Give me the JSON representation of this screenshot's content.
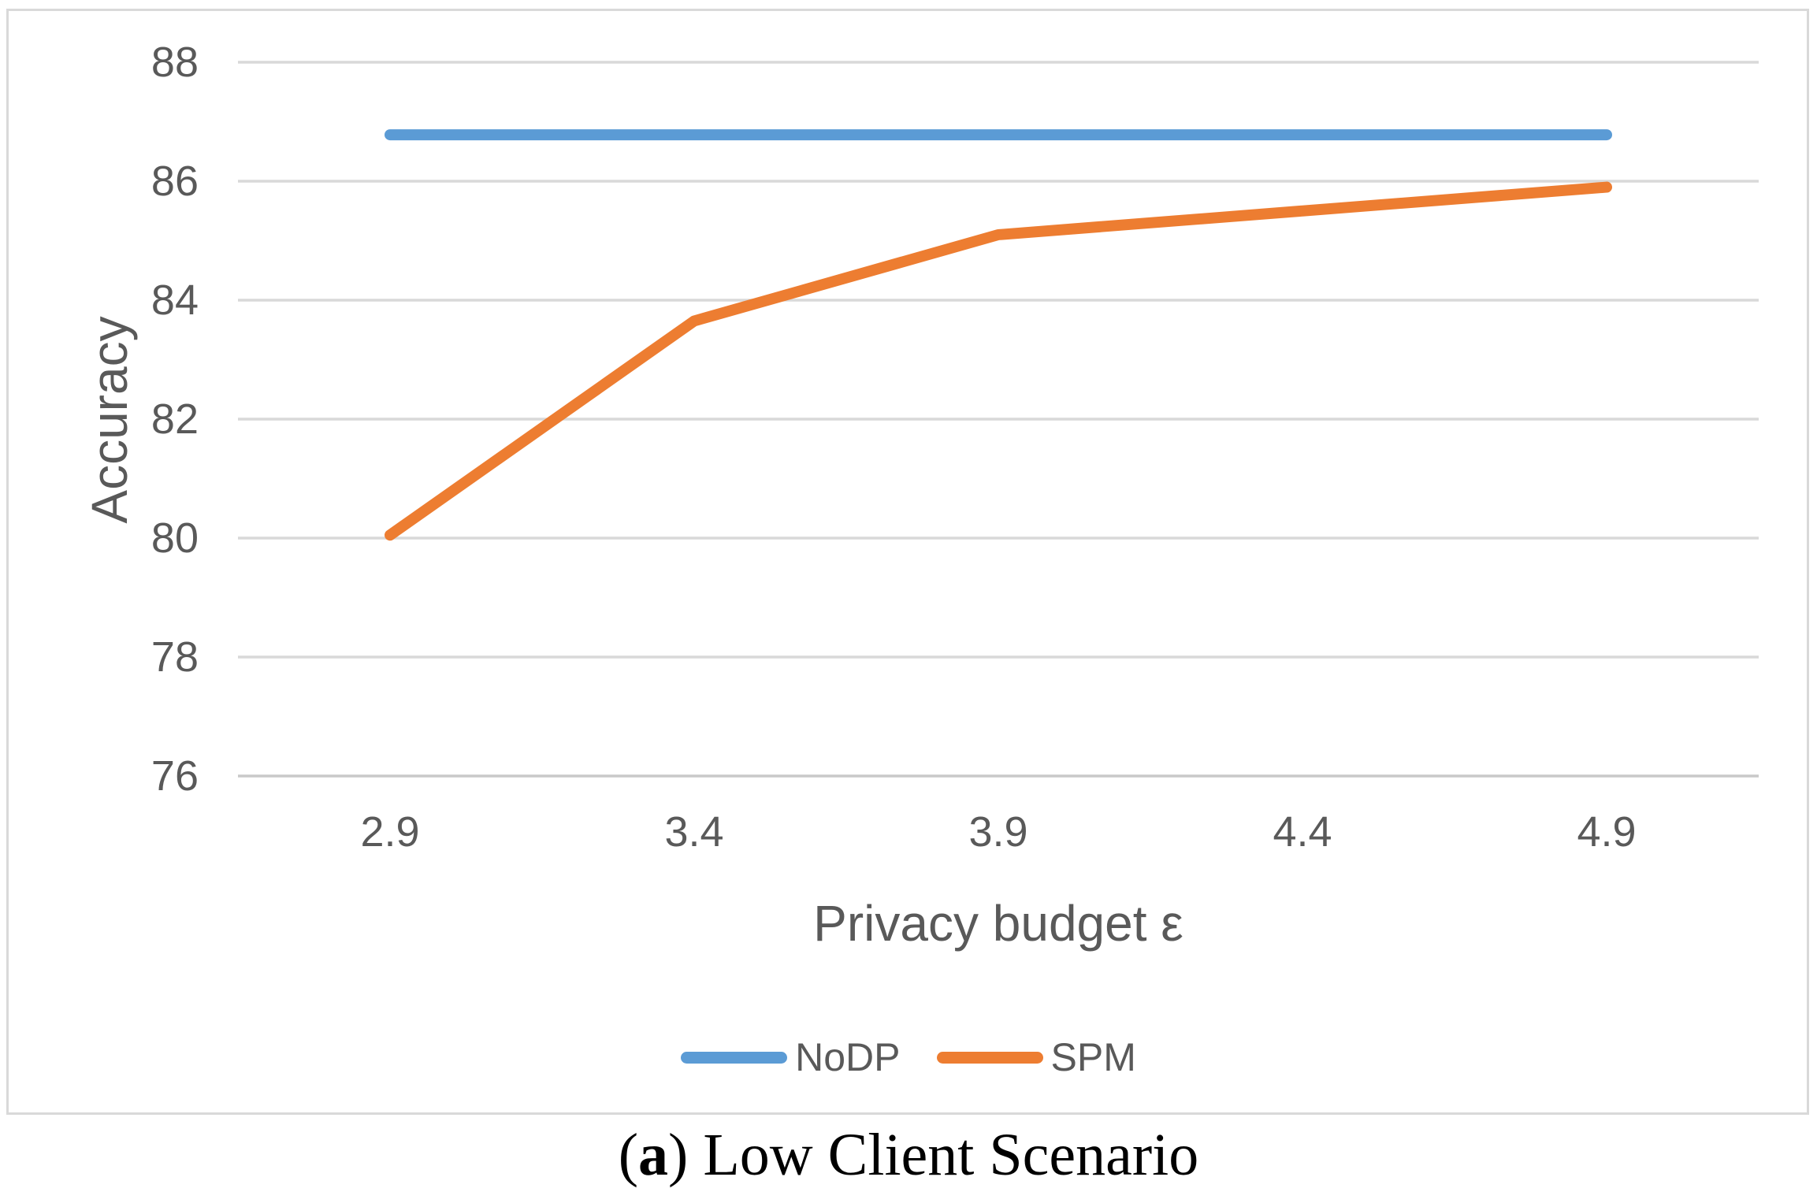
{
  "figure": {
    "caption": {
      "open": "(",
      "marker": "a",
      "close": ")",
      "rest": " Low Client Scenario"
    }
  },
  "chart_data": {
    "type": "line",
    "title": "",
    "xlabel": "Privacy budget ε",
    "ylabel": "Accuracy",
    "categories": [
      "2.9",
      "3.4",
      "3.9",
      "4.4",
      "4.9"
    ],
    "series": [
      {
        "name": "NoDP",
        "color": "#5B9BD5",
        "values": [
          86.78,
          86.78,
          86.78,
          86.78,
          86.78
        ]
      },
      {
        "name": "SPM",
        "color": "#ED7D31",
        "values": [
          80.05,
          83.65,
          85.1,
          85.5,
          85.9
        ]
      }
    ],
    "ylim": [
      76,
      88
    ],
    "ytick_step": 2,
    "yticks": [
      76,
      78,
      80,
      82,
      84,
      86,
      88
    ],
    "grid": true,
    "legend_position": "bottom",
    "line_width": 14,
    "colors": {
      "gridline": "#D9D9D9",
      "axis_line": "#C9C9C9",
      "tick_text": "#595959",
      "frame_border": "#D9D9D9",
      "background": "#FFFFFF",
      "caption_text": "#000000"
    }
  }
}
